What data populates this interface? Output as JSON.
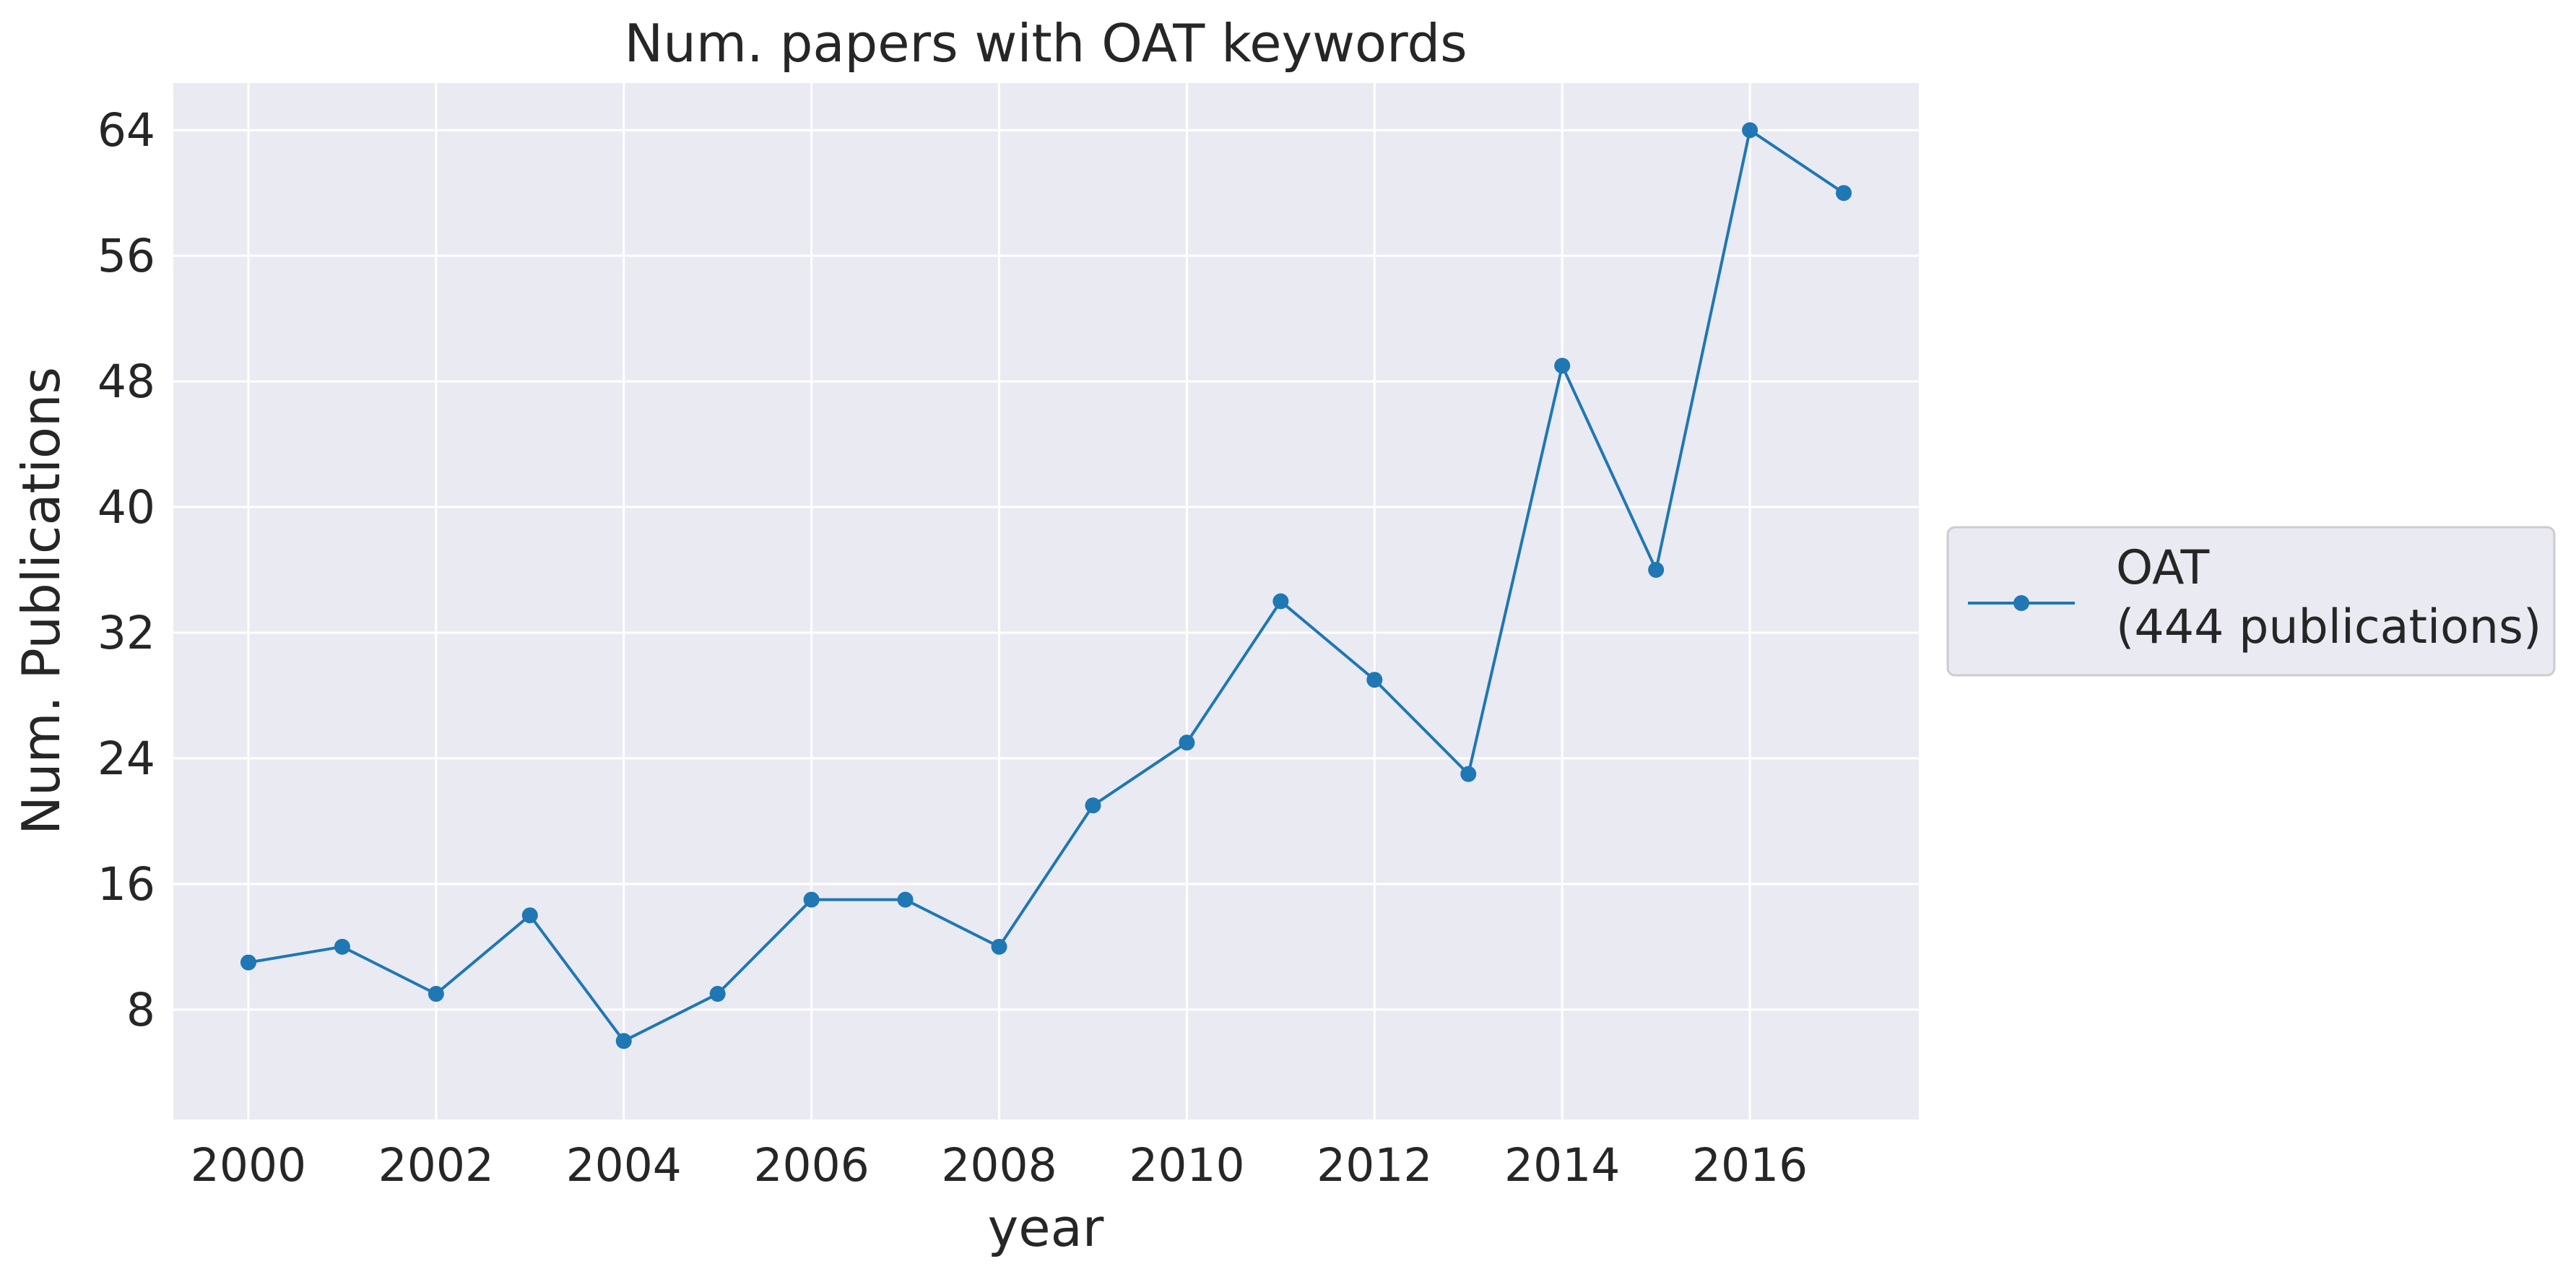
{
  "chart_data": {
    "type": "line",
    "title": "Num. papers with OAT keywords",
    "xlabel": "year",
    "ylabel": "Num. Publications",
    "xlim": [
      1999.2,
      2017.8
    ],
    "ylim": [
      1,
      67
    ],
    "xticks": [
      2000,
      2002,
      2004,
      2006,
      2008,
      2010,
      2012,
      2014,
      2016
    ],
    "yticks": [
      8,
      16,
      24,
      32,
      40,
      48,
      56,
      64
    ],
    "grid": true,
    "legend_position": "outside-right",
    "background_color": "#eaeaf2",
    "series": [
      {
        "name": "OAT",
        "legend_label_lines": [
          "OAT",
          "(444 publications)"
        ],
        "color": "#1f77b4",
        "marker": "circle",
        "x": [
          2000,
          2001,
          2002,
          2003,
          2004,
          2005,
          2006,
          2007,
          2008,
          2009,
          2010,
          2011,
          2012,
          2013,
          2014,
          2015,
          2016,
          2017
        ],
        "y": [
          11,
          12,
          9,
          14,
          6,
          9,
          15,
          15,
          12,
          21,
          25,
          34,
          29,
          23,
          49,
          36,
          64,
          60
        ]
      }
    ]
  }
}
